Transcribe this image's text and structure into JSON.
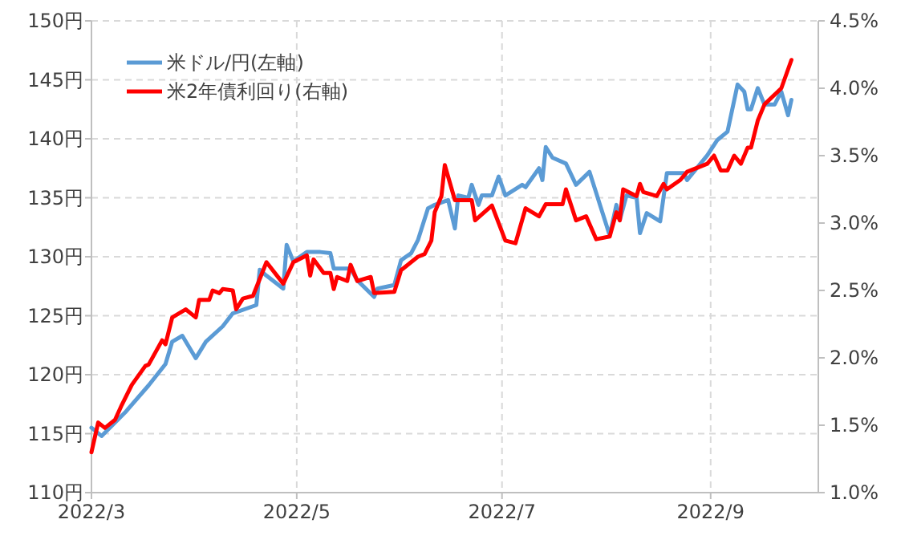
{
  "chart_data": {
    "type": "line",
    "x": [
      "2022-03-01",
      "2022-03-04",
      "2022-03-11",
      "2022-03-18",
      "2022-03-23",
      "2022-03-25",
      "2022-03-28",
      "2022-04-01",
      "2022-04-04",
      "2022-04-09",
      "2022-04-12",
      "2022-04-19",
      "2022-04-20",
      "2022-04-22",
      "2022-04-27",
      "2022-04-28",
      "2022-04-30",
      "2022-05-04",
      "2022-05-08",
      "2022-05-11",
      "2022-05-12",
      "2022-05-17",
      "2022-05-19",
      "2022-05-24",
      "2022-05-25",
      "2022-05-30",
      "2022-06-01",
      "2022-06-04",
      "2022-06-06",
      "2022-06-09",
      "2022-06-11",
      "2022-06-15",
      "2022-06-17",
      "2022-06-18",
      "2022-06-21",
      "2022-06-22",
      "2022-06-24",
      "2022-06-25",
      "2022-06-28",
      "2022-06-30",
      "2022-07-02",
      "2022-07-07",
      "2022-07-08",
      "2022-07-12",
      "2022-07-13",
      "2022-07-14",
      "2022-07-16",
      "2022-07-20",
      "2022-07-23",
      "2022-07-27",
      "2022-07-29",
      "2022-08-01",
      "2022-08-02",
      "2022-08-04",
      "2022-08-05",
      "2022-08-07",
      "2022-08-10",
      "2022-08-11",
      "2022-08-13",
      "2022-08-17",
      "2022-08-19",
      "2022-08-24",
      "2022-08-25",
      "2022-08-31",
      "2022-09-03",
      "2022-09-06",
      "2022-09-09",
      "2022-09-11",
      "2022-09-12",
      "2022-09-13",
      "2022-09-15",
      "2022-09-17",
      "2022-09-20",
      "2022-09-22",
      "2022-09-24",
      "2022-09-25"
    ],
    "series": [
      {
        "name": "米ドル/円(左軸)",
        "color": "#5b9bd5",
        "values": [
          115.5,
          114.8,
          116.8,
          119.1,
          120.9,
          122.8,
          123.3,
          121.4,
          122.8,
          124.1,
          125.2,
          125.9,
          128.9,
          128.4,
          127.3,
          131.0,
          129.6,
          130.4,
          130.4,
          130.3,
          129.0,
          129.0,
          128.0,
          126.6,
          127.3,
          127.6,
          129.7,
          130.3,
          131.4,
          134.1,
          134.4,
          134.8,
          132.4,
          135.2,
          135.0,
          136.1,
          134.4,
          135.2,
          135.2,
          136.8,
          135.2,
          136.1,
          135.9,
          137.5,
          136.5,
          139.3,
          138.4,
          137.9,
          136.1,
          137.2,
          135.4,
          132.7,
          131.8,
          134.4,
          133.1,
          135.2,
          135.0,
          132.0,
          133.7,
          133.0,
          137.1,
          137.1,
          136.5,
          138.6,
          139.9,
          140.6,
          144.6,
          144.0,
          142.5,
          142.5,
          144.3,
          142.9,
          142.9,
          144.0,
          142.0,
          143.3
        ]
      },
      {
        "name": "米2年債利回り(右軸)",
        "color": "#ff0000",
        "axis": "y2",
        "x": [
          "2022-03-01",
          "2022-03-03",
          "2022-03-05",
          "2022-03-08",
          "2022-03-10",
          "2022-03-13",
          "2022-03-17",
          "2022-03-18",
          "2022-03-22",
          "2022-03-23",
          "2022-03-25",
          "2022-03-29",
          "2022-04-01",
          "2022-04-02",
          "2022-04-05",
          "2022-04-06",
          "2022-04-08",
          "2022-04-09",
          "2022-04-12",
          "2022-04-13",
          "2022-04-15",
          "2022-04-18",
          "2022-04-22",
          "2022-04-27",
          "2022-04-30",
          "2022-05-04",
          "2022-05-05",
          "2022-05-06",
          "2022-05-09",
          "2022-05-11",
          "2022-05-12",
          "2022-05-13",
          "2022-05-16",
          "2022-05-17",
          "2022-05-19",
          "2022-05-23",
          "2022-05-24",
          "2022-05-30",
          "2022-06-01",
          "2022-06-06",
          "2022-06-08",
          "2022-06-10",
          "2022-06-11",
          "2022-06-13",
          "2022-06-14",
          "2022-06-17",
          "2022-06-22",
          "2022-06-23",
          "2022-06-28",
          "2022-07-02",
          "2022-07-05",
          "2022-07-08",
          "2022-07-12",
          "2022-07-14",
          "2022-07-19",
          "2022-07-20",
          "2022-07-23",
          "2022-07-26",
          "2022-07-29",
          "2022-08-02",
          "2022-08-04",
          "2022-08-05",
          "2022-08-06",
          "2022-08-10",
          "2022-08-11",
          "2022-08-12",
          "2022-08-16",
          "2022-08-18",
          "2022-08-19",
          "2022-08-23",
          "2022-08-25",
          "2022-08-31",
          "2022-09-02",
          "2022-09-04",
          "2022-09-06",
          "2022-09-08",
          "2022-09-10",
          "2022-09-12",
          "2022-09-13",
          "2022-09-15",
          "2022-09-17",
          "2022-09-22",
          "2022-09-25"
        ],
        "values": [
          1.3,
          1.52,
          1.48,
          1.54,
          1.65,
          1.8,
          1.94,
          1.95,
          2.13,
          2.1,
          2.3,
          2.36,
          2.3,
          2.43,
          2.43,
          2.5,
          2.48,
          2.51,
          2.5,
          2.36,
          2.44,
          2.46,
          2.71,
          2.55,
          2.71,
          2.76,
          2.61,
          2.73,
          2.63,
          2.63,
          2.51,
          2.6,
          2.57,
          2.69,
          2.57,
          2.6,
          2.48,
          2.49,
          2.65,
          2.75,
          2.77,
          2.87,
          3.08,
          3.2,
          3.43,
          3.17,
          3.17,
          3.02,
          3.13,
          2.87,
          2.85,
          3.11,
          3.05,
          3.14,
          3.14,
          3.25,
          3.02,
          3.05,
          2.88,
          2.9,
          3.08,
          3.02,
          3.25,
          3.2,
          3.29,
          3.23,
          3.2,
          3.29,
          3.25,
          3.32,
          3.38,
          3.44,
          3.5,
          3.39,
          3.39,
          3.5,
          3.44,
          3.56,
          3.56,
          3.76,
          3.88,
          4.0,
          4.21
        ]
      }
    ],
    "xlim": [
      "2022-03-01",
      "2022-10-03"
    ],
    "xticks": [
      {
        "value": "2022-03-01",
        "label": "2022/3"
      },
      {
        "value": "2022-05-01",
        "label": "2022/5"
      },
      {
        "value": "2022-07-01",
        "label": "2022/7"
      },
      {
        "value": "2022-09-01",
        "label": "2022/9"
      }
    ],
    "ylim": [
      110,
      150
    ],
    "yticks": [
      {
        "value": 110,
        "label": "110円"
      },
      {
        "value": 115,
        "label": "115円"
      },
      {
        "value": 120,
        "label": "120円"
      },
      {
        "value": 125,
        "label": "125円"
      },
      {
        "value": 130,
        "label": "130円"
      },
      {
        "value": 135,
        "label": "135円"
      },
      {
        "value": 140,
        "label": "140円"
      },
      {
        "value": 145,
        "label": "145円"
      },
      {
        "value": 150,
        "label": "150円"
      }
    ],
    "y2lim": [
      1.0,
      4.5
    ],
    "y2ticks": [
      {
        "value": 1.0,
        "label": "1.0%"
      },
      {
        "value": 1.5,
        "label": "1.5%"
      },
      {
        "value": 2.0,
        "label": "2.0%"
      },
      {
        "value": 2.5,
        "label": "2.5%"
      },
      {
        "value": 3.0,
        "label": "3.0%"
      },
      {
        "value": 3.5,
        "label": "3.5%"
      },
      {
        "value": 4.0,
        "label": "4.0%"
      },
      {
        "value": 4.5,
        "label": "4.5%"
      }
    ],
    "grid": true,
    "legend": "top left",
    "marker": "none",
    "line_style": "solid"
  }
}
